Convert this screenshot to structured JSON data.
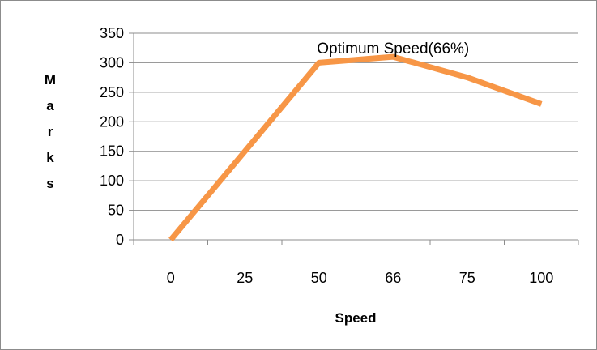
{
  "chart_data": {
    "type": "line",
    "categories": [
      "0",
      "25",
      "50",
      "66",
      "75",
      "100"
    ],
    "series": [
      {
        "values": [
          0,
          150,
          300,
          310,
          275,
          230
        ]
      }
    ],
    "xlabel": "Speed",
    "ylabel": "Marks",
    "ylabel_letters": [
      "M",
      "a",
      "r",
      "k",
      "s"
    ],
    "ylim": [
      0,
      350
    ],
    "yticks": [
      "0",
      "50",
      "100",
      "150",
      "200",
      "250",
      "300",
      "350"
    ],
    "grid": true,
    "legend": "none",
    "annotation": {
      "text": "Optimum Speed(66%)",
      "category_index": 3
    },
    "colors": {
      "line": "#F79646",
      "grid": "#8c8c8c",
      "frame": "#8c8c8c"
    }
  }
}
